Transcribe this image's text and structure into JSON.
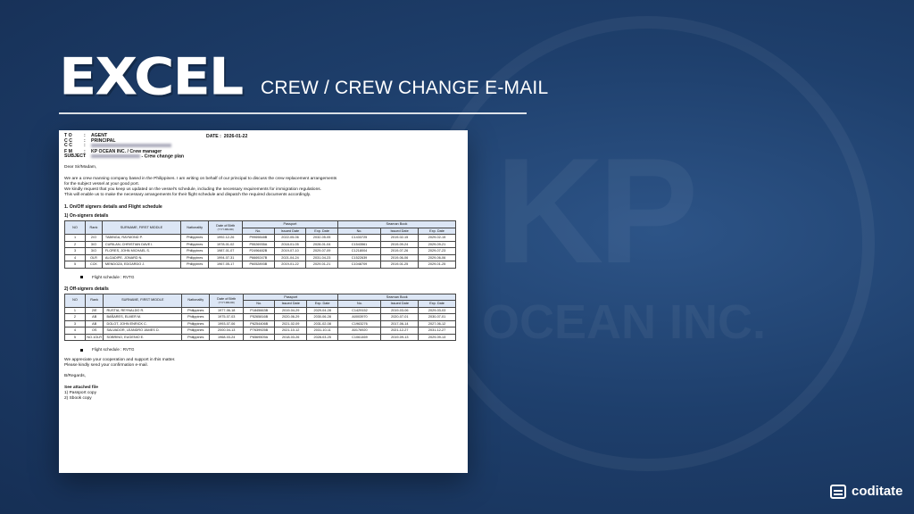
{
  "slide": {
    "title": "EXCEL",
    "subtitle": "CREW / CREW CHANGE E-MAIL",
    "brand": "coditate",
    "watermark_top": "KP",
    "watermark_bottom": "OCEAN INC."
  },
  "email": {
    "to_label": "T O",
    "to_value": "AGENT",
    "cc1_label": "C C",
    "cc1_value": "PRINCIPAL",
    "cc2_label": "C C",
    "fm_label": "F M",
    "fm_value": "KP OCEAN INC. / Crew manager",
    "subject_label": "SUBJECT",
    "subject_value": "- Crew change plan",
    "date_label": "DATE :",
    "date_value": "2026-01-22",
    "greeting": "Dear Sir/Madam,",
    "para1_line1": "We are a crew manning company based in the Philippines. I am writing on behalf of our principal to discuss the crew replacement arrangements",
    "para1_line2": "for the subject vessel at your good port.",
    "para1_line3": "We kindly request that you keep us updated on the vessel's schedule, including the necessary requirements for immigration regulations.",
    "para1_line4": "This will enable us to make the necessary arrangements for their flight schedule and dispatch the required documents accordingly.",
    "section_title": "1. On/Off signers details and Flight schedule",
    "on_title": "1) On-signers details",
    "off_title": "2) Off-signers details",
    "flight_on": "Flight schedule : RVTG",
    "flight_off": "Flight schedule : RVTG",
    "closing1": "We appreciate your cooperation and support in this matter.",
    "closing2": "Please kindly send your confirmation e-mail.",
    "regards": "B/Regards,",
    "attached_title": "See attached file",
    "attached1": "1) Passport copy",
    "attached2": "2) Sbook copy"
  },
  "table_headers": {
    "no": "NO",
    "rank": "Rank",
    "name": "SURNAME, FIRST MIDDLE",
    "nationality": "Nationality",
    "dob": "Date of Birth",
    "dob_format": "(YYYY-MM-DD)",
    "passport": "Passport",
    "seaman": "Seaman Book",
    "sub_no": "No.",
    "sub_issued": "Issued Date",
    "sub_exp": "Exp. Date"
  },
  "on_signers": [
    {
      "no": "1",
      "rank": "2/O",
      "name": "TABINGA, RAYMOND P.",
      "nat": "Philippines",
      "dob": "1992-12-26",
      "pp_no": "P9969848B",
      "pp_issued": "2022-05-06",
      "pp_exp": "2032-05-05",
      "sb_no": "C1433725",
      "sb_issued": "2019-02-15",
      "sb_exp": "2029-02-15"
    },
    {
      "no": "2",
      "rank": "3/O",
      "name": "CURILAN, CHRISTIAN DAVE I.",
      "nat": "Philippines",
      "dob": "1978-01-02",
      "pp_no": "P5526935A",
      "pp_issued": "2018-01-05",
      "pp_exp": "2028-01-04",
      "sb_no": "C1543561",
      "sb_issued": "2019-09-24",
      "sb_exp": "2029-09-21"
    },
    {
      "no": "3",
      "rank": "3/O",
      "name": "FLORES, JOHN MICHAEL S.",
      "nat": "Philippines",
      "dob": "1987-01-07",
      "pp_no": "P2496482B",
      "pp_issued": "2019-07-10",
      "pp_exp": "2029-07-09",
      "sb_no": "C1218004",
      "sb_issued": "2019-07-26",
      "sb_exp": "2029-07-23"
    },
    {
      "no": "4",
      "rank": "OLR",
      "name": "ALGADIPE, JONARD N.",
      "nat": "Philippines",
      "dob": "1994-07-31",
      "pp_no": "P6669247B",
      "pp_issued": "2021-04-24",
      "pp_exp": "2031-04-23",
      "sb_no": "C1522639",
      "sb_issued": "2019-06-06",
      "sb_exp": "2029-06-06"
    },
    {
      "no": "5",
      "rank": "CCK",
      "name": "MENDOZA, EDGARDO J.",
      "nat": "Philippines",
      "dob": "1967-05-17",
      "pp_no": "P6052893B",
      "pp_issued": "2019-01-22",
      "pp_exp": "2029-01-21",
      "sb_no": "C1048709",
      "sb_issued": "2019-01-25",
      "sb_exp": "2029-01-25"
    }
  ],
  "off_signers": [
    {
      "no": "1",
      "rank": "2/E",
      "name": "RUSTIA, REYNALDO R.",
      "nat": "Philippines",
      "dob": "1977-06-18",
      "pp_no": "P1845663B",
      "pp_issued": "2019-04-29",
      "pp_exp": "2029-04-28",
      "sb_no": "C1429152",
      "sb_issued": "2019-03-06",
      "sb_exp": "2029-03-03"
    },
    {
      "no": "2",
      "rank": "AB",
      "name": "BAÑARES, ELMER M.",
      "nat": "Philippines",
      "dob": "1975-07-03",
      "pp_no": "P5265816B",
      "pp_issued": "2020-06-29",
      "pp_exp": "2030-06-28",
      "sb_no": "A0003970",
      "sb_issued": "2020-07-01",
      "sb_exp": "2030-07-01"
    },
    {
      "no": "3",
      "rank": "AB",
      "name": "DOLOT, JOHN ENRICK C.",
      "nat": "Philippines",
      "dob": "1993-07-06",
      "pp_no": "P6254406B",
      "pp_issued": "2021-02-09",
      "pp_exp": "2031-02-08",
      "sb_no": "C1963276",
      "sb_issued": "2017-06-14",
      "sb_exp": "2027-06-12"
    },
    {
      "no": "4",
      "rank": "OS",
      "name": "SALVADOR, LEANDRO JAMES D.",
      "nat": "Philippines",
      "dob": "2000-04-13",
      "pp_no": "P7639925B",
      "pp_issued": "2021-10-12",
      "pp_exp": "2031-10-11",
      "sb_no": "A0176920",
      "sb_issued": "2021-12-27",
      "sb_exp": "2031-12-27"
    },
    {
      "no": "5",
      "rank": "NO.1OLR",
      "name": "SOBRINO, EUGENIO E.",
      "nat": "Philippines",
      "dob": "1968-03-24",
      "pp_no": "P6569509A",
      "pp_issued": "2018-03-26",
      "pp_exp": "2028-03-25",
      "sb_no": "C1061469",
      "sb_issued": "2019-09-13",
      "sb_exp": "2029-09-13"
    }
  ]
}
